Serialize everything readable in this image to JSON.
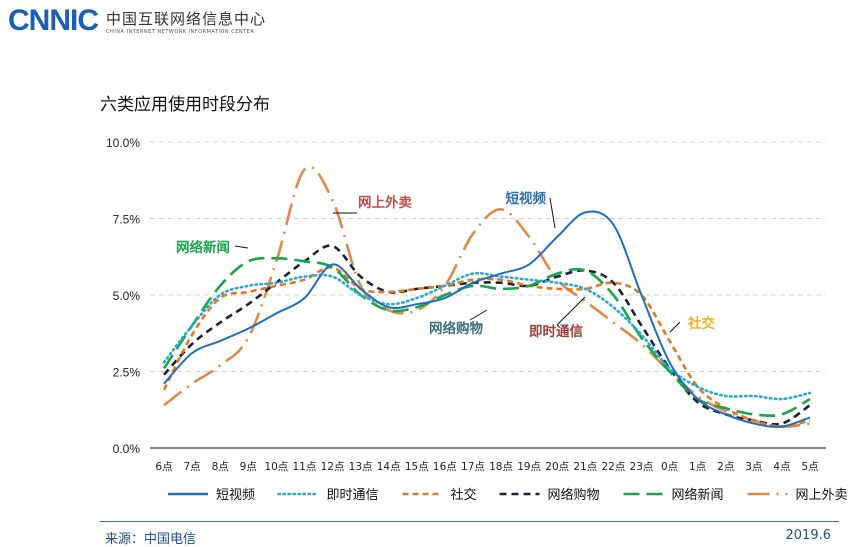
{
  "logo": {
    "mark": "CNNIC",
    "cn": "中国互联网络信息中心",
    "en": "CHINA INTERNET NETWORK INFORMATION CENTER"
  },
  "footer": {
    "source": "来源：中国电信",
    "date": "2019.6"
  },
  "chart_data": {
    "type": "line",
    "title": "六类应用使用时段分布",
    "x": [
      "6点",
      "7点",
      "8点",
      "9点",
      "10点",
      "11点",
      "12点",
      "13点",
      "14点",
      "15点",
      "16点",
      "17点",
      "18点",
      "19点",
      "20点",
      "21点",
      "22点",
      "23点",
      "0点",
      "1点",
      "2点",
      "3点",
      "4点",
      "5点"
    ],
    "ylim": [
      0,
      10
    ],
    "yticks": [
      "0.0%",
      "2.5%",
      "5.0%",
      "7.5%",
      "10.0%"
    ],
    "ytick_values": [
      0,
      2.5,
      5,
      7.5,
      10
    ],
    "grid": "horizontal dashed",
    "legend": "bottom",
    "series": [
      {
        "name": "短视频",
        "color": "#1f6fbf",
        "style": "solid",
        "label_color": "#2f6fb8",
        "values": [
          2.1,
          3.1,
          3.5,
          3.9,
          4.4,
          4.9,
          6.0,
          5.2,
          4.6,
          4.7,
          4.9,
          5.4,
          5.7,
          6.0,
          6.9,
          7.7,
          7.3,
          5.0,
          2.8,
          1.6,
          1.1,
          0.8,
          0.7,
          1.0
        ]
      },
      {
        "name": "即时通信",
        "color": "#2aa9d6",
        "style": "dotted",
        "label_color": "#a0403a",
        "values": [
          2.8,
          4.0,
          5.0,
          5.3,
          5.4,
          5.6,
          5.6,
          5.0,
          4.7,
          4.9,
          5.3,
          5.7,
          5.6,
          5.5,
          5.4,
          5.2,
          4.6,
          3.7,
          2.6,
          2.0,
          1.7,
          1.7,
          1.6,
          1.8
        ]
      },
      {
        "name": "社交",
        "color": "#e07a25",
        "style": "short-dash",
        "label_color": "#f0b020",
        "values": [
          1.9,
          3.7,
          4.9,
          5.1,
          5.3,
          5.5,
          5.9,
          5.2,
          5.1,
          5.2,
          5.3,
          5.5,
          5.5,
          5.3,
          5.2,
          5.2,
          5.4,
          5.0,
          3.5,
          2.0,
          1.3,
          0.9,
          0.7,
          0.9
        ]
      },
      {
        "name": "网络购物",
        "color": "#1a2436",
        "style": "dash",
        "label_color": "#3f6e7e",
        "values": [
          2.4,
          3.4,
          4.1,
          4.7,
          5.4,
          6.1,
          6.6,
          5.6,
          5.1,
          5.2,
          5.3,
          5.4,
          5.4,
          5.3,
          5.6,
          5.8,
          5.4,
          4.0,
          2.6,
          1.5,
          1.1,
          0.9,
          0.8,
          1.4
        ]
      },
      {
        "name": "网络新闻",
        "color": "#19a64b",
        "style": "long-dash",
        "label_color": "#19a64b",
        "values": [
          2.6,
          4.0,
          5.3,
          6.1,
          6.2,
          6.1,
          5.9,
          5.0,
          4.5,
          4.6,
          5.0,
          5.3,
          5.2,
          5.3,
          5.7,
          5.8,
          5.0,
          3.6,
          2.5,
          1.6,
          1.3,
          1.1,
          1.1,
          1.6
        ]
      },
      {
        "name": "网上外卖",
        "color": "#e0894a",
        "style": "dash-dot",
        "label_color": "#c0504d",
        "values": [
          1.4,
          2.1,
          2.7,
          3.6,
          6.1,
          9.1,
          8.1,
          5.3,
          4.5,
          4.5,
          5.3,
          7.0,
          7.8,
          6.9,
          5.5,
          4.8,
          4.1,
          3.4,
          2.5,
          1.7,
          1.2,
          0.9,
          0.7,
          0.8
        ]
      }
    ],
    "annotations": [
      {
        "text": "网上外卖",
        "series": "网上外卖",
        "at": "12点"
      },
      {
        "text": "网络新闻",
        "series": "网络新闻",
        "at": "9点"
      },
      {
        "text": "短视频",
        "series": "短视频",
        "at": "20点"
      },
      {
        "text": "网络购物",
        "series": "网络购物",
        "at": "17点"
      },
      {
        "text": "即时通信",
        "series": "即时通信",
        "at": "21点"
      },
      {
        "text": "社交",
        "series": "社交",
        "at": "0点"
      }
    ]
  }
}
